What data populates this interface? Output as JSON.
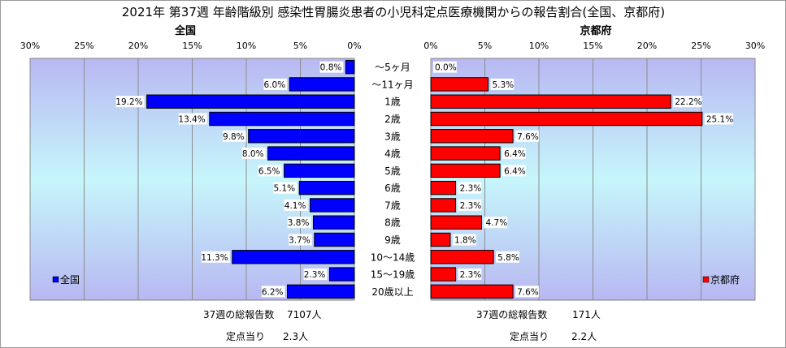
{
  "chart_data": {
    "type": "bar",
    "title": "2021年 第37週 年齢階級別 感染性胃腸炎患者の小児科定点医療機関からの報告割合(全国、京都府)",
    "categories": [
      "～5ヶ月",
      "～11ヶ月",
      "1歳",
      "2歳",
      "3歳",
      "4歳",
      "5歳",
      "6歳",
      "7歳",
      "8歳",
      "9歳",
      "10～14歳",
      "15～19歳",
      "20歳以上"
    ],
    "series": [
      {
        "name": "全国",
        "values": [
          0.8,
          6.0,
          19.2,
          13.4,
          9.8,
          8.0,
          6.5,
          5.1,
          4.1,
          3.8,
          3.7,
          11.3,
          2.3,
          6.2
        ],
        "labels": [
          "0.8%",
          "6.0%",
          "19.2%",
          "13.4%",
          "9.8%",
          "8.0%",
          "6.5%",
          "5.1%",
          "4.1%",
          "3.8%",
          "3.7%",
          "11.3%",
          "2.3%",
          "6.2%"
        ],
        "color": "#0000FF"
      },
      {
        "name": "京都府",
        "values": [
          0.0,
          5.3,
          22.2,
          25.1,
          7.6,
          6.4,
          6.4,
          2.3,
          2.3,
          4.7,
          1.8,
          5.8,
          2.3,
          7.6
        ],
        "labels": [
          "0.0%",
          "5.3%",
          "22.2%",
          "25.1%",
          "7.6%",
          "6.4%",
          "6.4%",
          "2.3%",
          "2.3%",
          "4.7%",
          "1.8%",
          "5.8%",
          "2.3%",
          "7.6%"
        ],
        "color": "#FF0000"
      }
    ],
    "panel_titles": [
      "全国",
      "京都府"
    ],
    "xlim": [
      0,
      30
    ],
    "xticks": [
      "30%",
      "25%",
      "20%",
      "15%",
      "10%",
      "5%",
      "0%"
    ],
    "xticks_right": [
      "0%",
      "5%",
      "10%",
      "15%",
      "20%",
      "25%",
      "30%"
    ],
    "legend_placement": "bottom-left / bottom-right",
    "grid": true,
    "left_footer": {
      "reports_label": "37週の総報告数",
      "reports_value": "7107人",
      "per_site_label": "定点当り",
      "per_site_value": "2.3人"
    },
    "right_footer": {
      "reports_label": "37週の総報告数",
      "reports_value": "171人",
      "per_site_label": "定点当り",
      "per_site_value": "2.2人"
    }
  }
}
